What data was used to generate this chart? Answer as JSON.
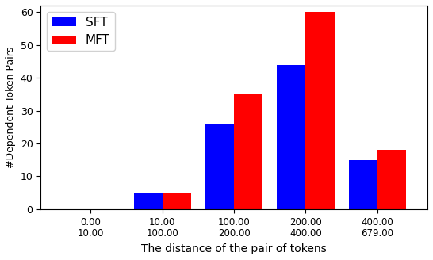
{
  "categories": [
    "0.00\n10.00",
    "10.00\n100.00",
    "100.00\n200.00",
    "200.00\n400.00",
    "400.00\n679.00"
  ],
  "sft_values": [
    0,
    5,
    26,
    44,
    15
  ],
  "mft_values": [
    0,
    5,
    35,
    60,
    18
  ],
  "sft_color": "#0000ff",
  "mft_color": "#ff0000",
  "ylabel": "#Dependent Token Pairs",
  "xlabel": "The distance of the pair of tokens",
  "ylim": [
    0,
    62
  ],
  "yticks": [
    0,
    10,
    20,
    30,
    40,
    50,
    60
  ],
  "legend_labels": [
    "SFT",
    "MFT"
  ],
  "bar_width": 0.4,
  "figsize": [
    5.46,
    3.28
  ],
  "dpi": 100
}
